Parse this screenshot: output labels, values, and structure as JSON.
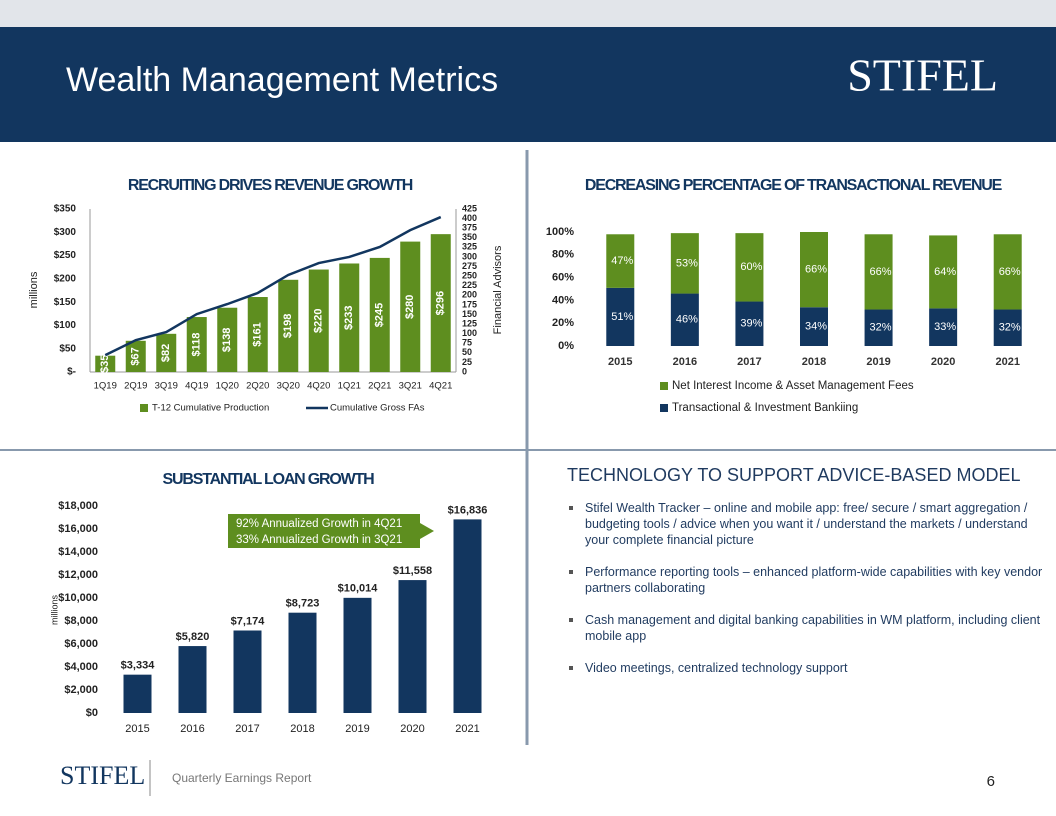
{
  "header": {
    "title": "Wealth Management Metrics",
    "logo": "STIFEL"
  },
  "chart_data": [
    {
      "type": "combo",
      "title": "RECRUITING DRIVES REVENUE GROWTH",
      "categories": [
        "1Q19",
        "2Q19",
        "3Q19",
        "4Q19",
        "1Q20",
        "2Q20",
        "3Q20",
        "4Q20",
        "1Q21",
        "2Q21",
        "3Q21",
        "4Q21"
      ],
      "series": [
        {
          "name": "T-12 Cumulative Production",
          "type": "bar",
          "color": "#5e8e1f",
          "values": [
            35,
            67,
            82,
            118,
            138,
            161,
            198,
            220,
            233,
            245,
            280,
            296
          ],
          "value_labels": [
            "$35",
            "$67",
            "$82",
            "$118",
            "$138",
            "$161",
            "$198",
            "$220",
            "$233",
            "$245",
            "$280",
            "$296"
          ]
        },
        {
          "name": "Cumulative Gross FAs",
          "type": "line",
          "axis": "y2",
          "color": "#12365f",
          "values": [
            44,
            83,
            104,
            151,
            177,
            206,
            253,
            284,
            300,
            326,
            370,
            404
          ]
        }
      ],
      "ylabel": "millions",
      "y2label": "Financial Advisors",
      "ylim": [
        0,
        350
      ],
      "yticks": [
        {
          "value": 0,
          "label": "$-"
        },
        {
          "value": 50,
          "label": "$50"
        },
        {
          "value": 100,
          "label": "$100"
        },
        {
          "value": 150,
          "label": "$150"
        },
        {
          "value": 200,
          "label": "$200"
        },
        {
          "value": 250,
          "label": "$250"
        },
        {
          "value": 300,
          "label": "$300"
        },
        {
          "value": 350,
          "label": "$350"
        }
      ],
      "y2lim": [
        0,
        425
      ],
      "y2ticks": [
        0,
        25,
        50,
        75,
        100,
        125,
        150,
        175,
        200,
        225,
        250,
        275,
        300,
        325,
        350,
        375,
        400,
        425
      ]
    },
    {
      "type": "stacked_bar",
      "title": "DECREASING PERCENTAGE OF TRANSACTIONAL REVENUE",
      "categories": [
        "2015",
        "2016",
        "2017",
        "2018",
        "2019",
        "2020",
        "2021"
      ],
      "series": [
        {
          "name": "Transactional & Investment Bankiing",
          "color": "#12365f",
          "values": [
            51,
            46,
            39,
            34,
            32,
            33,
            32
          ],
          "value_labels": [
            "51%",
            "46%",
            "39%",
            "34%",
            "32%",
            "33%",
            "32%"
          ]
        },
        {
          "name": "Net Interest Income & Asset Management Fees",
          "color": "#5e8e1f",
          "values": [
            47,
            53,
            60,
            66,
            66,
            64,
            66
          ],
          "value_labels": [
            "47%",
            "53%",
            "60%",
            "66%",
            "66%",
            "64%",
            "66%"
          ]
        }
      ],
      "ylim": [
        0,
        100
      ],
      "yticks": [
        {
          "value": 0,
          "label": "0%"
        },
        {
          "value": 20,
          "label": "20%"
        },
        {
          "value": 40,
          "label": "40%"
        },
        {
          "value": 60,
          "label": "60%"
        },
        {
          "value": 80,
          "label": "80%"
        },
        {
          "value": 100,
          "label": "100%"
        }
      ]
    },
    {
      "type": "bar",
      "title": "SUBSTANTIAL LOAN GROWTH",
      "categories": [
        "2015",
        "2016",
        "2017",
        "2018",
        "2019",
        "2020",
        "2021"
      ],
      "values": [
        3334,
        5820,
        7174,
        8723,
        10014,
        11558,
        16836
      ],
      "value_labels": [
        "$3,334",
        "$5,820",
        "$7,174",
        "$8,723",
        "$10,014",
        "$11,558",
        "$16,836"
      ],
      "color": "#12365f",
      "ylabel": "millions",
      "ylim": [
        0,
        18000
      ],
      "yticks": [
        {
          "value": 0,
          "label": "$0"
        },
        {
          "value": 2000,
          "label": "$2,000"
        },
        {
          "value": 4000,
          "label": "$4,000"
        },
        {
          "value": 6000,
          "label": "$6,000"
        },
        {
          "value": 8000,
          "label": "$8,000"
        },
        {
          "value": 10000,
          "label": "$10,000"
        },
        {
          "value": 12000,
          "label": "$12,000"
        },
        {
          "value": 14000,
          "label": "$14,000"
        },
        {
          "value": 16000,
          "label": "$16,000"
        },
        {
          "value": 18000,
          "label": "$18,000"
        }
      ],
      "annotation": [
        "92% Annualized Growth in 4Q21",
        "33% Annualized Growth in 3Q21"
      ]
    }
  ],
  "text_panel": {
    "title": "TECHNOLOGY TO SUPPORT ADVICE-BASED MODEL",
    "bullets": [
      "Stifel Wealth Tracker – online and mobile app:  free/ secure / smart aggregation / budgeting tools / advice when you want it / understand the markets / understand your complete financial picture",
      "Performance reporting tools – enhanced platform-wide capabilities with key vendor partners collaborating",
      "Cash management and digital banking capabilities in WM platform, including client mobile app",
      "Video meetings, centralized technology support"
    ]
  },
  "footer": {
    "logo": "STIFEL",
    "label": "Quarterly Earnings Report",
    "page": "6"
  }
}
